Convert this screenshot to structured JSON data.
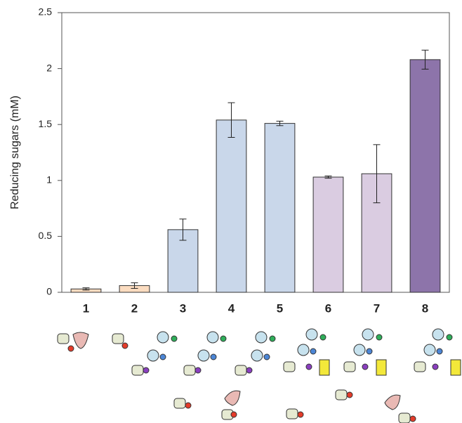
{
  "chart_data": {
    "type": "bar",
    "y_label": "Reducing sugars (mM)",
    "categories": [
      "1",
      "2",
      "3",
      "4",
      "5",
      "6",
      "7",
      "8"
    ],
    "values": [
      0.03,
      0.06,
      0.56,
      1.54,
      1.51,
      1.03,
      1.06,
      2.08
    ],
    "errors": [
      0.01,
      0.025,
      0.095,
      0.155,
      0.02,
      0.01,
      0.26,
      0.085
    ],
    "colors": [
      "#fbdcc0",
      "#fbdcc0",
      "#c9d7ea",
      "#c9d7ea",
      "#c9d7ea",
      "#dacce1",
      "#dacce1",
      "#8d74aa"
    ],
    "ylim": [
      0,
      2.5
    ],
    "yticks": [
      0,
      0.5,
      1,
      1.5,
      2,
      2.5
    ]
  }
}
